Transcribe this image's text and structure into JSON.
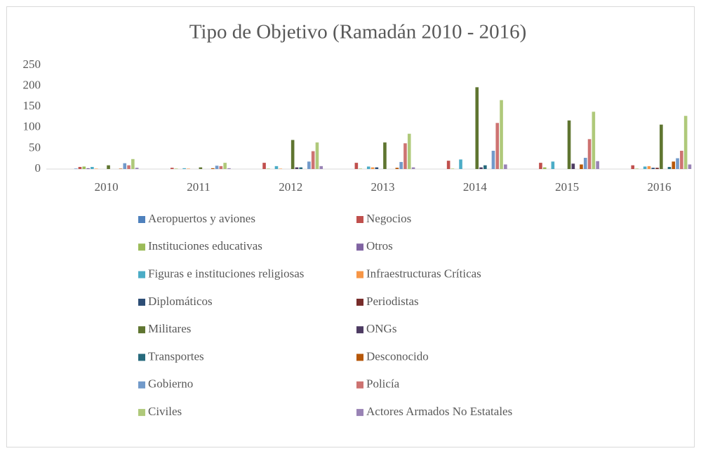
{
  "chart_data": {
    "type": "bar",
    "title": "Tipo de Objetivo (Ramadán 2010 - 2016)",
    "categories": [
      "2010",
      "2011",
      "2012",
      "2013",
      "2014",
      "2015",
      "2016"
    ],
    "ylim": [
      0,
      250
    ],
    "yticks": [
      0,
      50,
      100,
      150,
      200,
      250
    ],
    "grid": false,
    "legend": "bottom",
    "series": [
      {
        "name": "Aeropuertos y aviones",
        "color": "#4f81bd",
        "values": [
          1,
          0,
          0,
          0,
          0,
          0,
          0
        ]
      },
      {
        "name": "Negocios",
        "color": "#c0504d",
        "values": [
          5,
          3,
          15,
          15,
          20,
          15,
          9
        ]
      },
      {
        "name": "Instituciones educativas",
        "color": "#9bbb59",
        "values": [
          6,
          1,
          1,
          1,
          1,
          4,
          1
        ]
      },
      {
        "name": "Otros",
        "color": "#8064a2",
        "values": [
          2,
          0,
          0,
          0,
          0,
          0,
          0
        ]
      },
      {
        "name": "Figuras e instituciones religiosas",
        "color": "#4bacc6",
        "values": [
          5,
          2,
          7,
          6,
          23,
          18,
          6
        ]
      },
      {
        "name": "Infraestructuras Críticas",
        "color": "#f79646",
        "values": [
          1,
          1,
          1,
          4,
          0,
          0,
          7
        ]
      },
      {
        "name": "Diplomáticos",
        "color": "#2c4d75",
        "values": [
          0,
          0,
          0,
          4,
          0,
          0,
          3
        ]
      },
      {
        "name": "Periodistas",
        "color": "#772c2a",
        "values": [
          0,
          0,
          0,
          0,
          0,
          0,
          3
        ]
      },
      {
        "name": "Militares",
        "color": "#5f7530",
        "values": [
          9,
          4,
          70,
          64,
          197,
          117,
          107
        ]
      },
      {
        "name": "ONGs",
        "color": "#4d3b62",
        "values": [
          0,
          0,
          4,
          0,
          4,
          13,
          0
        ]
      },
      {
        "name": "Transportes",
        "color": "#276a7c",
        "values": [
          0,
          0,
          4,
          0,
          9,
          0,
          5
        ]
      },
      {
        "name": "Desconocido",
        "color": "#b65708",
        "values": [
          1,
          2,
          0,
          3,
          0,
          11,
          18
        ]
      },
      {
        "name": "Gobierno",
        "color": "#729aca",
        "values": [
          14,
          8,
          18,
          17,
          44,
          27,
          26
        ]
      },
      {
        "name": "Policía",
        "color": "#cd7371",
        "values": [
          9,
          7,
          43,
          62,
          111,
          72,
          44
        ]
      },
      {
        "name": "Civiles",
        "color": "#afc97a",
        "values": [
          24,
          15,
          64,
          85,
          166,
          138,
          128
        ]
      },
      {
        "name": "Actores Armados No Estatales",
        "color": "#9983b5",
        "values": [
          3,
          2,
          7,
          4,
          11,
          19,
          11
        ]
      }
    ]
  }
}
